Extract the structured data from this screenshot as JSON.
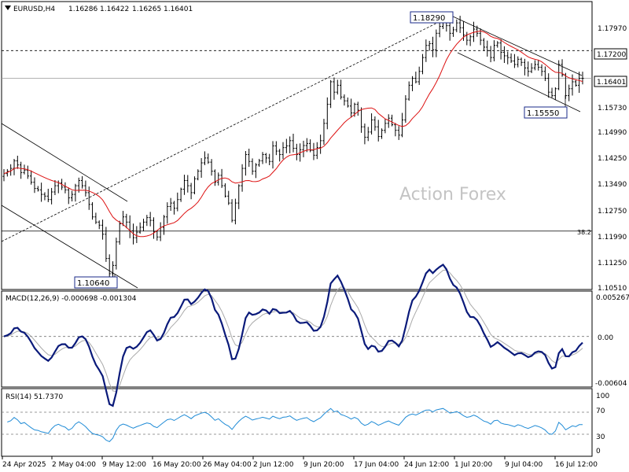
{
  "chart_data": {
    "type": "candlestick",
    "watermark": "Action Forex",
    "main": {
      "symbol": "EURUSD,H4",
      "ohlc": [
        "1.16286",
        "1.16422",
        "1.16265",
        "1.16401"
      ],
      "price_range": [
        1.1035,
        1.1857
      ],
      "y_ticks": [
        "1.17970",
        "1.17200",
        "1.16401",
        "1.15730",
        "1.14990",
        "1.14250",
        "1.13490",
        "1.12750",
        "1.11990",
        "1.11250",
        "1.10510"
      ],
      "current_price": "1.16401",
      "level_1720": "1.17200",
      "fib_label": "38.2",
      "fib_level": 1.1199,
      "annotations": [
        {
          "text": "1.18290",
          "price": 1.1829,
          "bar": 128
        },
        {
          "text": "1.15550",
          "price": 1.1555,
          "bar": 159
        },
        {
          "text": "1.10640",
          "price": 1.1064,
          "bar": 31
        }
      ],
      "closes": [
        1.1365,
        1.1372,
        1.138,
        1.1402,
        1.139,
        1.1368,
        1.1375,
        1.1358,
        1.134,
        1.1322,
        1.1318,
        1.1305,
        1.13,
        1.129,
        1.1312,
        1.133,
        1.1338,
        1.1326,
        1.1318,
        1.1295,
        1.1305,
        1.133,
        1.1345,
        1.133,
        1.131,
        1.1276,
        1.124,
        1.1225,
        1.1216,
        1.119,
        1.112,
        1.1076,
        1.11,
        1.1168,
        1.122,
        1.124,
        1.1225,
        1.12,
        1.118,
        1.1196,
        1.121,
        1.1225,
        1.1238,
        1.123,
        1.1198,
        1.1182,
        1.121,
        1.124,
        1.127,
        1.128,
        1.1265,
        1.129,
        1.132,
        1.1345,
        1.133,
        1.131,
        1.135,
        1.1372,
        1.1396,
        1.141,
        1.1398,
        1.1372,
        1.134,
        1.136,
        1.133,
        1.13,
        1.128,
        1.123,
        1.128,
        1.133,
        1.138,
        1.142,
        1.14,
        1.1372,
        1.139,
        1.1402,
        1.142,
        1.141,
        1.14,
        1.1445,
        1.143,
        1.142,
        1.144,
        1.1445,
        1.146,
        1.1438,
        1.142,
        1.1434,
        1.1446,
        1.1452,
        1.1432,
        1.1418,
        1.144,
        1.146,
        1.151,
        1.1565,
        1.163,
        1.16,
        1.162,
        1.1586,
        1.1575,
        1.156,
        1.154,
        1.1565,
        1.1548,
        1.15,
        1.147,
        1.1485,
        1.152,
        1.15,
        1.1472,
        1.149,
        1.151,
        1.1525,
        1.1506,
        1.149,
        1.1476,
        1.152,
        1.158,
        1.162,
        1.164,
        1.163,
        1.166,
        1.17,
        1.1735,
        1.174,
        1.1722,
        1.177,
        1.179,
        1.181,
        1.1792,
        1.177,
        1.178,
        1.18,
        1.1786,
        1.1765,
        1.175,
        1.176,
        1.1782,
        1.177,
        1.175,
        1.173,
        1.172,
        1.17,
        1.1735,
        1.1742,
        1.1715,
        1.1705,
        1.17,
        1.169,
        1.168,
        1.1695,
        1.1686,
        1.167,
        1.166,
        1.167,
        1.168,
        1.1672,
        1.166,
        1.164,
        1.16,
        1.159,
        1.161,
        1.168,
        1.165,
        1.159,
        1.161,
        1.163,
        1.162,
        1.164,
        1.164
      ]
    },
    "macd": {
      "label": "MACD(12,26,9) -0.000698 -0.001304",
      "y_ticks": [
        "0.005267",
        "0.00",
        "-0.00604"
      ],
      "range": [
        -0.0065,
        0.0058
      ]
    },
    "rsi": {
      "label": "RSI(14) 51.7370",
      "y_ticks": [
        "100",
        "70",
        "30",
        "0"
      ]
    },
    "x_ticks": [
      "24 Apr 2025",
      "2 May 04:00",
      "9 May 12:00",
      "16 May 20:00",
      "26 May 04:00",
      "2 Jun 12:00",
      "9 Jun 20:00",
      "17 Jun 04:00",
      "24 Jun 12:00",
      "1 Jul 20:00",
      "9 Jul 04:00",
      "16 Jul 12:00"
    ]
  }
}
